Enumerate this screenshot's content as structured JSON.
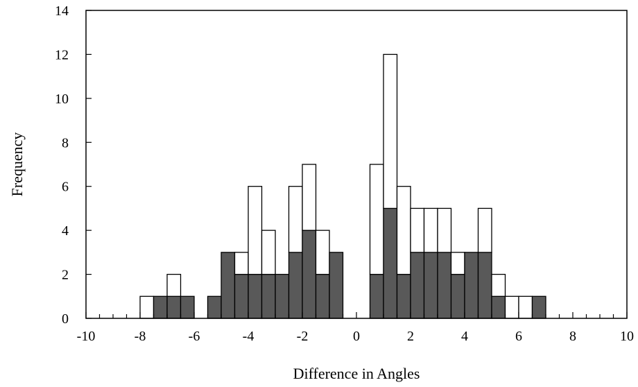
{
  "chart_data": {
    "type": "bar",
    "subtype": "stacked-histogram",
    "title": "",
    "xlabel": "Difference in Angles",
    "ylabel": "Frequency",
    "xlim": [
      -10,
      10
    ],
    "ylim": [
      0,
      14
    ],
    "x_major_ticks": [
      -10,
      -8,
      -6,
      -4,
      -2,
      0,
      2,
      4,
      6,
      8,
      10
    ],
    "x_minor_step": 0.5,
    "y_ticks": [
      0,
      2,
      4,
      6,
      8,
      10,
      12,
      14
    ],
    "bin_width": 0.5,
    "grid": false,
    "legend": "none",
    "bin_starts": [
      -8,
      -7.5,
      -7,
      -6.5,
      -5.5,
      -5,
      -4.5,
      -4,
      -3.5,
      -3,
      -2.5,
      -2,
      -1.5,
      -1,
      0.5,
      1,
      1.5,
      2,
      2.5,
      3,
      3.5,
      4,
      4.5,
      5,
      5.5,
      6,
      6.5
    ],
    "series": [
      {
        "color": "#595959",
        "values": [
          0,
          1,
          1,
          1,
          1,
          3,
          2,
          2,
          2,
          2,
          3,
          4,
          2,
          3,
          2,
          5,
          2,
          3,
          3,
          3,
          2,
          3,
          3,
          1,
          0,
          0,
          1
        ]
      },
      {
        "color": "#ffffff",
        "values": [
          1,
          0,
          1,
          0,
          0,
          0,
          1,
          4,
          2,
          0,
          3,
          3,
          2,
          0,
          5,
          7,
          4,
          2,
          2,
          2,
          1,
          0,
          2,
          1,
          1,
          1,
          0
        ]
      }
    ]
  }
}
